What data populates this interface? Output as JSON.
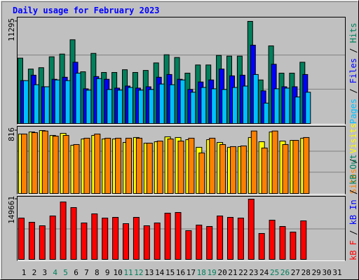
{
  "title": "Daily usage for February 2023",
  "legend_separator": " / ",
  "chart_data": [
    {
      "type": "bar",
      "ylim": [
        0,
        11295
      ],
      "yticks": [
        11295
      ],
      "grid_divisions": 3,
      "series": [
        {
          "name": "Hits",
          "color": "#00805c",
          "values": [
            7229,
            6024,
            6175,
            7379,
            7681,
            9262,
            5723,
            7756,
            5648,
            5648,
            5949,
            5648,
            5873,
            6702,
            7605,
            7304,
            5572,
            6476,
            6476,
            7530,
            7455,
            7455,
            11295,
            4819,
            8584,
            5572,
            5572,
            6777,
            null,
            null,
            null
          ]
        },
        {
          "name": "Files",
          "color": "#0000ff",
          "values": [
            4744,
            5346,
            4066,
            4895,
            5120,
            6777,
            3840,
            5196,
            4895,
            3916,
            4142,
            3916,
            4066,
            5120,
            5422,
            4895,
            3765,
            4593,
            4819,
            6024,
            5271,
            5346,
            8660,
            3614,
            6551,
            4066,
            4066,
            5422,
            null,
            null,
            null
          ]
        },
        {
          "name": "Pages",
          "color": "#00c0ff",
          "values": [
            4744,
            4292,
            4066,
            4819,
            4744,
            5572,
            3690,
            4970,
            3765,
            3690,
            3991,
            3690,
            3765,
            4367,
            4292,
            4819,
            3464,
            3991,
            3840,
            3765,
            3991,
            4142,
            5422,
            2259,
            3840,
            3916,
            2937,
            3464,
            null,
            null,
            null
          ]
        }
      ]
    },
    {
      "type": "bar",
      "ylim": [
        0,
        816
      ],
      "yticks": [
        816
      ],
      "grid_divisions": 3,
      "series": [
        {
          "name": "Visits",
          "color": "#ffff00",
          "values": [
            771,
            798,
            816,
            753,
            780,
            626,
            707,
            753,
            707,
            707,
            662,
            726,
            653,
            671,
            735,
            726,
            698,
            599,
            698,
            662,
            599,
            608,
            726,
            671,
            798,
            680,
            689,
            717,
            null,
            null,
            null
          ]
        },
        {
          "name": "Sites",
          "color": "#ff8000",
          "values": [
            771,
            789,
            810,
            744,
            753,
            635,
            717,
            771,
            717,
            717,
            717,
            717,
            653,
            680,
            707,
            680,
            717,
            526,
            717,
            635,
            608,
            617,
            810,
            590,
            810,
            635,
            689,
            726,
            null,
            null,
            null
          ]
        }
      ]
    },
    {
      "type": "bar",
      "ylim": [
        0,
        149661
      ],
      "yticks": [
        149661
      ],
      "grid_divisions": 2,
      "series": [
        {
          "name": "kB F",
          "color": "#ff0000",
          "values": [
            102660,
            92220,
            83520,
            107880,
            142680,
            128760,
            90480,
            113100,
            102660,
            104400,
            88740,
            104400,
            83520,
            90480,
            114840,
            116580,
            71340,
            85260,
            81780,
            107880,
            104400,
            102660,
            149661,
            64380,
            97440,
            81780,
            67860,
            95700,
            null,
            null,
            null
          ]
        }
      ],
      "legend_extra": [
        {
          "name": "kB In",
          "color": "#0000ff"
        },
        {
          "name": "kB Out",
          "color": "#00805c"
        }
      ],
      "categories": [
        "1",
        "2",
        "3",
        "4",
        "5",
        "6",
        "7",
        "8",
        "9",
        "10",
        "11",
        "12",
        "13",
        "14",
        "15",
        "16",
        "17",
        "18",
        "19",
        "20",
        "21",
        "22",
        "23",
        "24",
        "25",
        "26",
        "27",
        "28",
        "29",
        "30",
        "31"
      ],
      "category_colors": [
        "#000000",
        "#000000",
        "#000000",
        "#00805c",
        "#00805c",
        "#000000",
        "#000000",
        "#000000",
        "#000000",
        "#000000",
        "#00805c",
        "#00805c",
        "#000000",
        "#000000",
        "#000000",
        "#000000",
        "#000000",
        "#00805c",
        "#00805c",
        "#000000",
        "#000000",
        "#000000",
        "#000000",
        "#000000",
        "#00805c",
        "#00805c",
        "#000000",
        "#000000",
        "#000000",
        "#000000",
        "#000000"
      ]
    }
  ]
}
